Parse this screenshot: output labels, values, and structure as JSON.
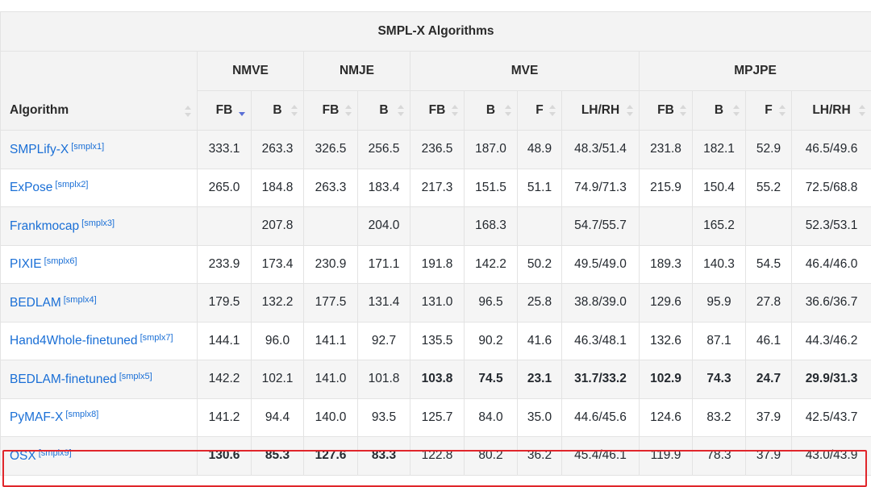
{
  "table": {
    "title": "SMPL-X Algorithms",
    "algorithm_header": "Algorithm",
    "groups": [
      {
        "label": "NMVE",
        "columns": [
          "FB",
          "B"
        ]
      },
      {
        "label": "NMJE",
        "columns": [
          "FB",
          "B"
        ]
      },
      {
        "label": "MVE",
        "columns": [
          "FB",
          "B",
          "F",
          "LH/RH"
        ]
      },
      {
        "label": "MPJPE",
        "columns": [
          "FB",
          "B",
          "F",
          "LH/RH"
        ]
      }
    ],
    "sorted_column_index": 0,
    "rows": [
      {
        "name": "SMPLify-X",
        "ref": "[smplx1]",
        "values": [
          "333.1",
          "263.3",
          "326.5",
          "256.5",
          "236.5",
          "187.0",
          "48.9",
          "48.3/51.4",
          "231.8",
          "182.1",
          "52.9",
          "46.5/49.6"
        ],
        "bold": []
      },
      {
        "name": "ExPose",
        "ref": "[smplx2]",
        "values": [
          "265.0",
          "184.8",
          "263.3",
          "183.4",
          "217.3",
          "151.5",
          "51.1",
          "74.9/71.3",
          "215.9",
          "150.4",
          "55.2",
          "72.5/68.8"
        ],
        "bold": []
      },
      {
        "name": "Frankmocap",
        "ref": "[smplx3]",
        "values": [
          "",
          "207.8",
          "",
          "204.0",
          "",
          "168.3",
          "",
          "54.7/55.7",
          "",
          "165.2",
          "",
          "52.3/53.1"
        ],
        "bold": []
      },
      {
        "name": "PIXIE",
        "ref": "[smplx6]",
        "values": [
          "233.9",
          "173.4",
          "230.9",
          "171.1",
          "191.8",
          "142.2",
          "50.2",
          "49.5/49.0",
          "189.3",
          "140.3",
          "54.5",
          "46.4/46.0"
        ],
        "bold": []
      },
      {
        "name": "BEDLAM",
        "ref": "[smplx4]",
        "values": [
          "179.5",
          "132.2",
          "177.5",
          "131.4",
          "131.0",
          "96.5",
          "25.8",
          "38.8/39.0",
          "129.6",
          "95.9",
          "27.8",
          "36.6/36.7"
        ],
        "bold": []
      },
      {
        "name": "Hand4Whole-finetuned",
        "ref": "[smplx7]",
        "values": [
          "144.1",
          "96.0",
          "141.1",
          "92.7",
          "135.5",
          "90.2",
          "41.6",
          "46.3/48.1",
          "132.6",
          "87.1",
          "46.1",
          "44.3/46.2"
        ],
        "bold": []
      },
      {
        "name": "BEDLAM-finetuned",
        "ref": "[smplx5]",
        "values": [
          "142.2",
          "102.1",
          "141.0",
          "101.8",
          "103.8",
          "74.5",
          "23.1",
          "31.7/33.2",
          "102.9",
          "74.3",
          "24.7",
          "29.9/31.3"
        ],
        "bold": [
          4,
          5,
          6,
          7,
          8,
          9,
          10,
          11
        ]
      },
      {
        "name": "PyMAF-X",
        "ref": "[smplx8]",
        "values": [
          "141.2",
          "94.4",
          "140.0",
          "93.5",
          "125.7",
          "84.0",
          "35.0",
          "44.6/45.6",
          "124.6",
          "83.2",
          "37.9",
          "42.5/43.7"
        ],
        "bold": []
      },
      {
        "name": "OSX",
        "ref": "[smplx9]",
        "values": [
          "130.6",
          "85.3",
          "127.6",
          "83.3",
          "122.8",
          "80.2",
          "36.2",
          "45.4/46.1",
          "119.9",
          "78.3",
          "37.9",
          "43.0/43.9"
        ],
        "bold": [
          0,
          1,
          2,
          3
        ],
        "highlighted": true
      }
    ]
  },
  "colors": {
    "link": "#1a6fd6",
    "highlight_border": "#e0262b",
    "sort_active": "#5a6fd6"
  }
}
